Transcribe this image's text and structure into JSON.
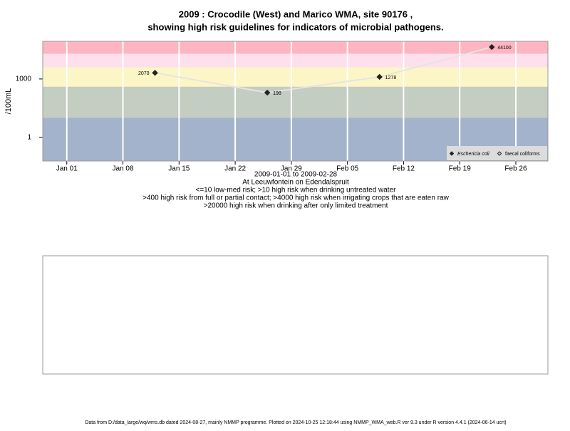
{
  "chart_data": {
    "type": "scatter",
    "title": "2009 : Crocodile (West) and Marico WMA, site 90176 ,",
    "subtitle": "showing high risk guidelines for indicators of microbial pathogens.",
    "ylabel": "/100mL",
    "xlabel_lines": [
      "2009-01-01 to 2009-02-28",
      "At Leeuwfontein on Edendalspruit",
      "<=10 low-med risk; >10 high risk when drinking untreated water",
      ">400 high risk from full or partial contact; >4000 high risk when irrigating crops that are eaten raw",
      ">20000 high risk when drinking after only limited treatment"
    ],
    "x": [
      "2009-01-12",
      "2009-01-26",
      "2009-02-09",
      "2009-02-23"
    ],
    "series": [
      {
        "name": "Eschericia coli",
        "color": "#222222",
        "values": [
          2070,
          198,
          1278,
          44100
        ]
      },
      {
        "name": "faecal coliforms",
        "color": "#222222",
        "values": [
          null,
          null,
          null,
          null
        ]
      }
    ],
    "xlim": [
      "2008-12-29",
      "2009-03-02"
    ],
    "xticks": [
      {
        "value": "2009-01-01",
        "label": "Jan 01"
      },
      {
        "value": "2009-01-08",
        "label": "Jan 08"
      },
      {
        "value": "2009-01-15",
        "label": "Jan 15"
      },
      {
        "value": "2009-01-22",
        "label": "Jan 22"
      },
      {
        "value": "2009-01-29",
        "label": "Jan 29"
      },
      {
        "value": "2009-02-05",
        "label": "Feb 05"
      },
      {
        "value": "2009-02-12",
        "label": "Feb 12"
      },
      {
        "value": "2009-02-19",
        "label": "Feb 19"
      },
      {
        "value": "2009-02-26",
        "label": "Feb 26"
      }
    ],
    "ylim": [
      0.06,
      87000
    ],
    "yticks": [
      1,
      1000
    ],
    "log_scale": true,
    "grid": true,
    "legend": "bottom-right",
    "guideline_bands": [
      {
        "upper": 10,
        "color": "#a2b3cb"
      },
      {
        "upper": 400,
        "color": "#c3cdc2"
      },
      {
        "upper": 4000,
        "color": "#fcf6c6"
      },
      {
        "upper": 20000,
        "color": "#fde0ec"
      }
    ],
    "top_band_color": "#fdb6c1",
    "footer": "Data from D:/data_large/wq/wms.db dated 2024-08-27, mainly NMMP programme. Plotted on 2024-10-25 12:18:44 using NMMP_WMA_web.R ver 9.3 under R version 4.4.1 (2024-06-14 ucrt)"
  }
}
